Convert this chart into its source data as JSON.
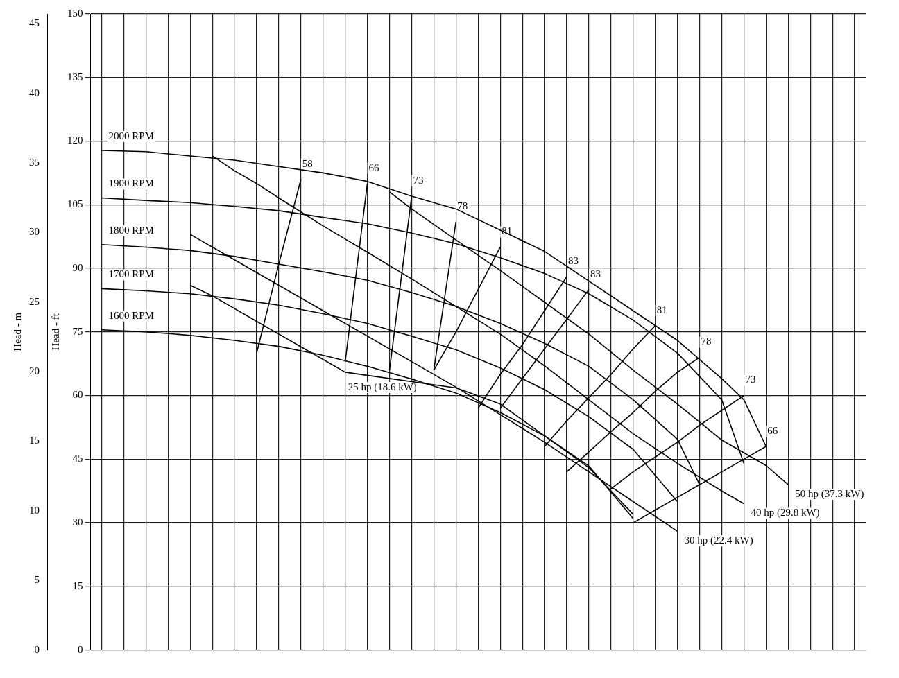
{
  "chart_data": {
    "type": "line",
    "ylabel": "Head - ft",
    "y2label": "Head - m",
    "ylim": [
      0,
      150
    ],
    "yticks": [
      0,
      15,
      30,
      45,
      60,
      75,
      90,
      105,
      120,
      135,
      150
    ],
    "y2lim": [
      0,
      45.72
    ],
    "y2ticks": [
      0,
      5,
      10,
      15,
      20,
      25,
      30,
      35,
      40,
      45
    ],
    "grid": true,
    "legend": false,
    "marker": "none",
    "line_style": "solid",
    "categories": [
      null,
      null,
      null,
      null,
      null,
      null,
      null,
      null,
      null,
      null,
      null,
      null,
      null,
      null,
      null,
      null,
      null,
      null,
      null,
      null,
      null,
      null,
      null,
      null,
      null,
      null,
      null,
      null,
      null,
      null,
      null,
      null,
      null,
      null,
      null
    ],
    "series": [
      {
        "name": "2000 RPM",
        "color": "#000000",
        "values": [
          117.8,
          null,
          117.5,
          null,
          116.5,
          null,
          115.5,
          null,
          114,
          null,
          112.5,
          null,
          110.5,
          null,
          107,
          null,
          104,
          null,
          99,
          null,
          94,
          null,
          87,
          null,
          80,
          null,
          73,
          null,
          64,
          59,
          48,
          null,
          null,
          null,
          null
        ]
      },
      {
        "name": "1900 RPM",
        "color": "#000000",
        "values": [
          106.6,
          null,
          106,
          null,
          105.5,
          null,
          104.6,
          null,
          103.6,
          null,
          102,
          null,
          100.5,
          null,
          98.3,
          null,
          95.8,
          null,
          92.5,
          null,
          88.8,
          null,
          84,
          null,
          77.8,
          null,
          70,
          null,
          59,
          44,
          null,
          null,
          null,
          null,
          null
        ]
      },
      {
        "name": "1800 RPM",
        "color": "#000000",
        "values": [
          95.6,
          null,
          95,
          null,
          94.2,
          null,
          92.8,
          null,
          91,
          null,
          89.2,
          null,
          87.2,
          null,
          84.3,
          null,
          81,
          null,
          77,
          null,
          72.3,
          null,
          66.9,
          null,
          59,
          null,
          49.7,
          39,
          null,
          null,
          null,
          null,
          null,
          null,
          null
        ]
      },
      {
        "name": "1700 RPM",
        "color": "#000000",
        "values": [
          85.2,
          null,
          84.7,
          null,
          84,
          null,
          82.8,
          null,
          81.3,
          null,
          79.3,
          null,
          77,
          null,
          74,
          null,
          70.8,
          null,
          66.5,
          null,
          61.4,
          null,
          55,
          null,
          47.3,
          null,
          35,
          null,
          null,
          null,
          null,
          null,
          null,
          null,
          null
        ]
      },
      {
        "name": "1600 RPM",
        "color": "#000000",
        "values": [
          75.5,
          null,
          75,
          null,
          74.2,
          null,
          73,
          null,
          71.6,
          null,
          69.5,
          null,
          66.9,
          null,
          63.9,
          null,
          60.6,
          null,
          56,
          null,
          50.5,
          null,
          43.4,
          null,
          31,
          null,
          null,
          null,
          null,
          null,
          null,
          null,
          null,
          null,
          null
        ]
      },
      {
        "name": "25 hp (18.6 kW)",
        "color": "#000000",
        "values": [
          null,
          null,
          null,
          null,
          86,
          83.5,
          80.5,
          77.5,
          74.5,
          71.5,
          68.5,
          65.5,
          null,
          null,
          null,
          null,
          61.8,
          null,
          58,
          null,
          50.5,
          null,
          43,
          null,
          32,
          null,
          null,
          null,
          null,
          null,
          null,
          null,
          null,
          null,
          null
        ]
      },
      {
        "name": "30 hp (22.4 kW)",
        "color": "#000000",
        "values": [
          null,
          null,
          null,
          null,
          98,
          null,
          92,
          null,
          86,
          null,
          80,
          null,
          74,
          null,
          68,
          null,
          62,
          null,
          55.5,
          null,
          49,
          null,
          42,
          null,
          35,
          null,
          28,
          null,
          null,
          null,
          null,
          null,
          null,
          null,
          null
        ]
      },
      {
        "name": "40 hp (29.8 kW)",
        "color": "#000000",
        "values": [
          null,
          null,
          null,
          null,
          null,
          116.5,
          113,
          110,
          106.6,
          null,
          100,
          null,
          93.8,
          null,
          87.5,
          null,
          81,
          null,
          74.5,
          null,
          67,
          null,
          59,
          null,
          51,
          null,
          44,
          null,
          37.5,
          34.5,
          null,
          null,
          null,
          null,
          null
        ]
      },
      {
        "name": "50 hp (37.3 kW)",
        "color": "#000000",
        "values": [
          null,
          null,
          null,
          null,
          null,
          null,
          null,
          null,
          null,
          null,
          null,
          null,
          null,
          108,
          104,
          null,
          96.7,
          null,
          89.5,
          null,
          82,
          null,
          74.5,
          null,
          66,
          null,
          58,
          null,
          49.5,
          null,
          43.5,
          39,
          null,
          null,
          null
        ]
      },
      {
        "name": "58",
        "color": "#000000",
        "values": [
          null,
          null,
          null,
          null,
          null,
          null,
          null,
          70,
          91,
          111,
          null,
          null,
          null,
          null,
          null,
          null,
          null,
          null,
          null,
          null,
          null,
          null,
          null,
          null,
          null,
          null,
          null,
          null,
          null,
          null,
          null,
          null,
          null,
          null,
          null
        ]
      },
      {
        "name": "66",
        "color": "#000000",
        "values": [
          null,
          null,
          null,
          null,
          null,
          null,
          null,
          null,
          null,
          null,
          null,
          68,
          110,
          null,
          null,
          null,
          null,
          null,
          null,
          null,
          null,
          null,
          null,
          null,
          null,
          null,
          null,
          null,
          null,
          null,
          null,
          null,
          null,
          null,
          null
        ]
      },
      {
        "name": "73",
        "color": "#000000",
        "values": [
          null,
          null,
          null,
          null,
          null,
          null,
          null,
          null,
          null,
          null,
          null,
          null,
          null,
          66,
          107,
          null,
          null,
          null,
          null,
          null,
          null,
          null,
          null,
          null,
          null,
          null,
          null,
          null,
          null,
          null,
          null,
          null,
          null,
          null,
          null
        ]
      },
      {
        "name": "78",
        "color": "#000000",
        "values": [
          null,
          null,
          null,
          null,
          null,
          null,
          null,
          null,
          null,
          null,
          null,
          null,
          null,
          null,
          null,
          66,
          101,
          null,
          null,
          null,
          null,
          null,
          null,
          null,
          null,
          null,
          null,
          null,
          null,
          null,
          null,
          null,
          null,
          null,
          null
        ]
      },
      {
        "name": "81",
        "color": "#000000",
        "values": [
          null,
          null,
          null,
          null,
          null,
          null,
          null,
          null,
          null,
          null,
          null,
          null,
          null,
          null,
          null,
          66,
          75,
          85,
          95,
          null,
          null,
          null,
          null,
          null,
          null,
          null,
          null,
          null,
          null,
          null,
          null,
          null,
          null,
          null,
          null
        ]
      },
      {
        "name": "83",
        "color": "#000000",
        "values": [
          null,
          null,
          null,
          null,
          null,
          null,
          null,
          null,
          null,
          null,
          null,
          null,
          null,
          null,
          null,
          null,
          null,
          57,
          65,
          72,
          80,
          88,
          null,
          null,
          null,
          null,
          null,
          null,
          null,
          null,
          null,
          null,
          null,
          null,
          null
        ]
      },
      {
        "name": "83",
        "color": "#000000",
        "values": [
          null,
          null,
          null,
          null,
          null,
          null,
          null,
          null,
          null,
          null,
          null,
          null,
          null,
          null,
          null,
          null,
          null,
          null,
          57,
          64,
          71,
          78,
          85,
          null,
          null,
          null,
          null,
          null,
          null,
          null,
          null,
          null,
          null,
          null,
          null
        ]
      },
      {
        "name": "81",
        "color": "#000000",
        "values": [
          null,
          null,
          null,
          null,
          null,
          null,
          null,
          null,
          null,
          null,
          null,
          null,
          null,
          null,
          null,
          null,
          null,
          null,
          null,
          null,
          48,
          54,
          59.5,
          65,
          71,
          76.5,
          null,
          null,
          null,
          null,
          null,
          null,
          null,
          null,
          null
        ]
      },
      {
        "name": "78",
        "color": "#000000",
        "values": [
          null,
          null,
          null,
          null,
          null,
          null,
          null,
          null,
          null,
          null,
          null,
          null,
          null,
          null,
          null,
          null,
          null,
          null,
          null,
          null,
          null,
          42,
          46.7,
          51.5,
          56,
          61,
          65.5,
          69,
          null,
          null,
          null,
          null,
          null,
          null,
          null
        ]
      },
      {
        "name": "73",
        "color": "#000000",
        "values": [
          null,
          null,
          null,
          null,
          null,
          null,
          null,
          null,
          null,
          null,
          null,
          null,
          null,
          null,
          null,
          null,
          null,
          null,
          null,
          null,
          null,
          null,
          null,
          38,
          42,
          45.5,
          49,
          53,
          56.5,
          60,
          null,
          null,
          null,
          null,
          null
        ]
      },
      {
        "name": "66",
        "color": "#000000",
        "values": [
          null,
          null,
          null,
          null,
          null,
          null,
          null,
          null,
          null,
          null,
          null,
          null,
          null,
          null,
          null,
          null,
          null,
          null,
          null,
          null,
          null,
          null,
          null,
          null,
          30,
          33,
          36,
          39,
          42,
          45,
          48,
          null,
          null,
          null,
          null
        ]
      }
    ]
  }
}
